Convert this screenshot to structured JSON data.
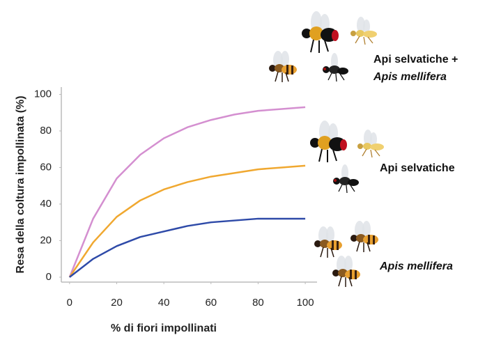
{
  "chart_data": {
    "type": "line",
    "x_label": "% di fiori impollinati",
    "y_label": "Resa della coltura impollinata (%)",
    "x": [
      0,
      10,
      20,
      30,
      40,
      50,
      60,
      70,
      80,
      90,
      100
    ],
    "series": [
      {
        "color": "#d48fd0",
        "values": [
          0,
          32,
          54,
          67,
          76,
          82,
          86,
          89,
          91,
          92,
          93
        ]
      },
      {
        "color": "#f0a830",
        "values": [
          0,
          19,
          33,
          42,
          48,
          52,
          55,
          57,
          59,
          60,
          61
        ]
      },
      {
        "color": "#2e4aa8",
        "values": [
          0,
          10,
          17,
          22,
          25,
          28,
          30,
          31,
          32,
          32,
          32
        ]
      }
    ],
    "annotations": [
      "Api selvatiche +",
      "Apis mellifera",
      "Api selvatiche",
      "Apis mellifera"
    ],
    "xlim": [
      -3.5,
      105
    ],
    "xticks": [
      0,
      20,
      40,
      60,
      80,
      100
    ],
    "ylim": [
      -2.7,
      104
    ],
    "yticks": [
      0,
      20,
      40,
      60,
      80,
      100
    ]
  }
}
